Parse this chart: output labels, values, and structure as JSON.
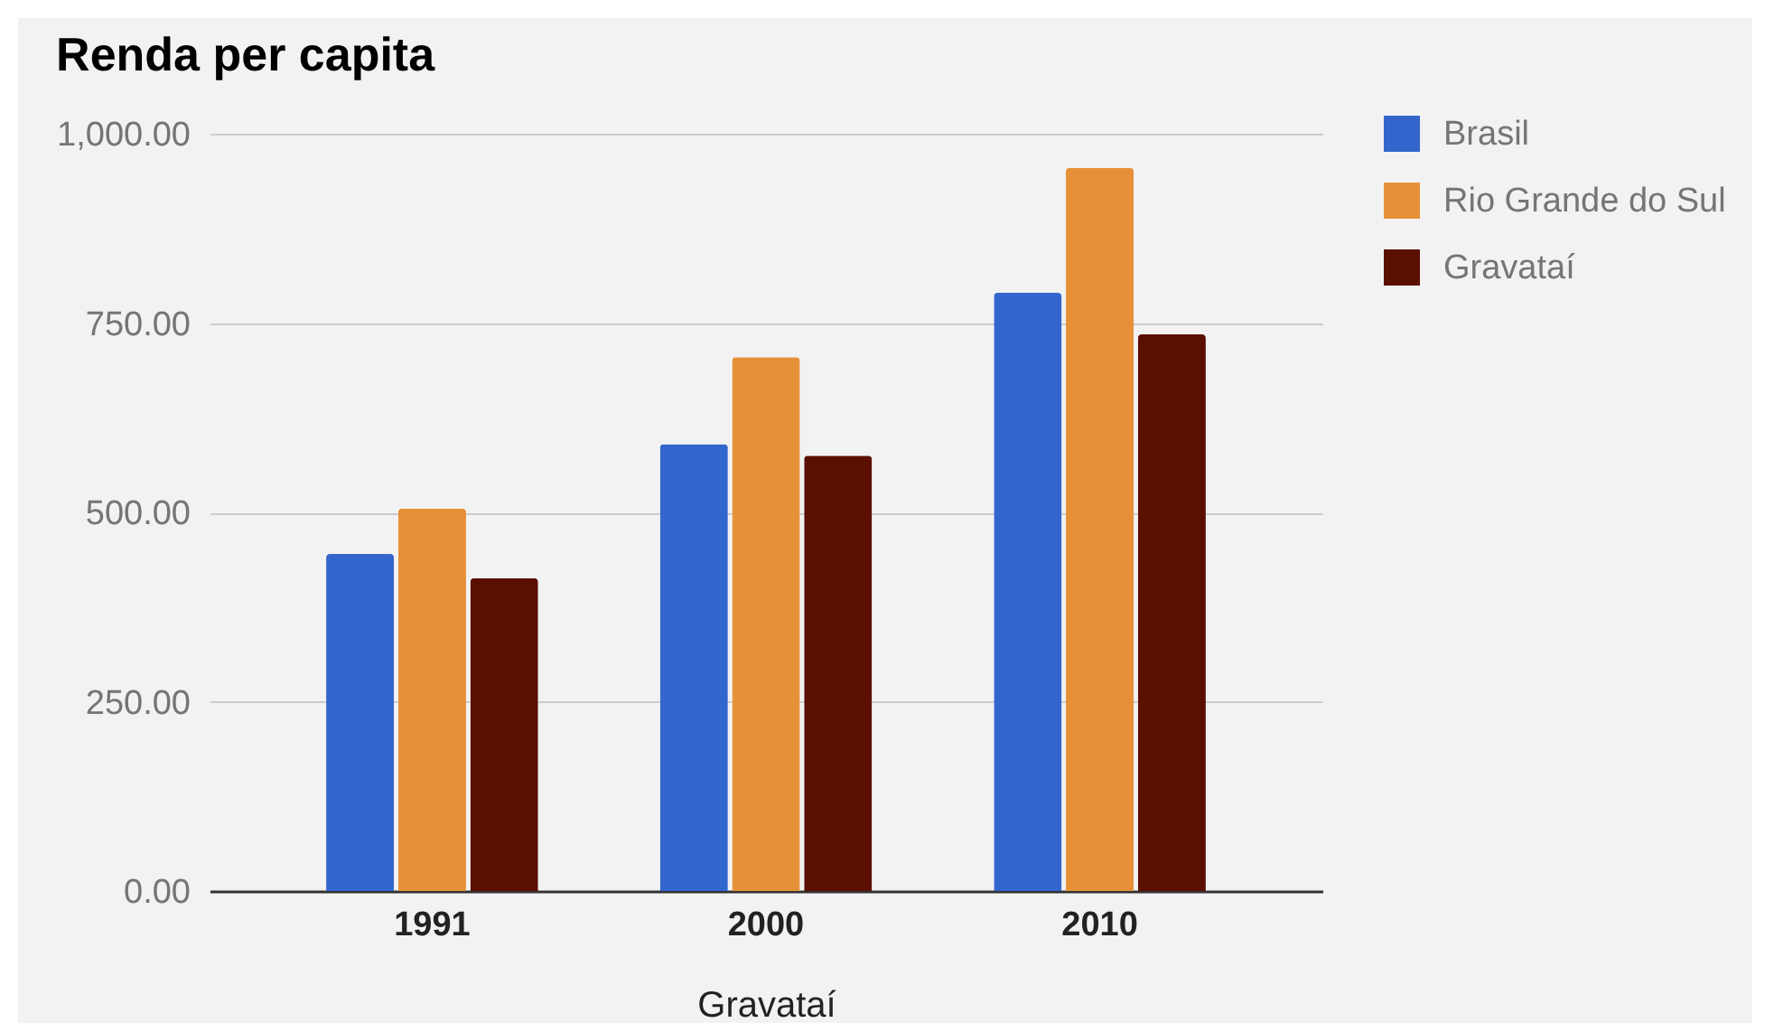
{
  "chart_data": {
    "type": "bar",
    "title": "Renda per capita",
    "xlabel": "Gravataí",
    "categories": [
      "1991",
      "2000",
      "2010"
    ],
    "series": [
      {
        "name": "Brasil",
        "color": "#3366cc",
        "values": [
          445,
          590,
          790
        ]
      },
      {
        "name": "Rio Grande do Sul",
        "color": "#e69138",
        "values": [
          505,
          705,
          955
        ]
      },
      {
        "name": "Gravataí",
        "color": "#5b0f00",
        "values": [
          413,
          575,
          735
        ]
      }
    ],
    "ylim": [
      0,
      1000
    ],
    "yticks": [
      {
        "value": 0,
        "label": "0.00"
      },
      {
        "value": 250,
        "label": "250.00"
      },
      {
        "value": 500,
        "label": "500.00"
      },
      {
        "value": 750,
        "label": "750.00"
      },
      {
        "value": 1000,
        "label": "1,000.00"
      }
    ],
    "grid": "y",
    "legend": "top right"
  }
}
